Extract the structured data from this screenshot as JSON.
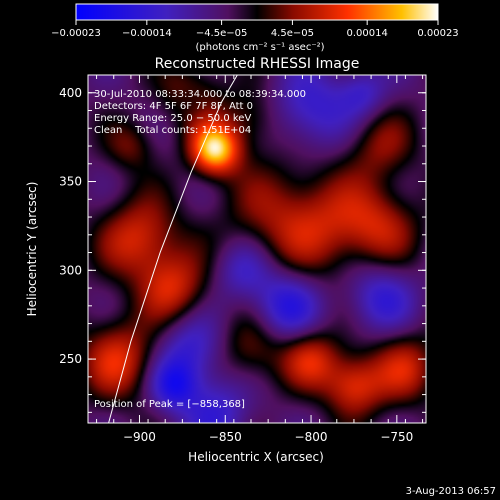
{
  "chart_data": {
    "type": "heatmap",
    "title": "Reconstructed RHESSI Image",
    "xlabel": "Heliocentric X (arcsec)",
    "ylabel": "Heliocentric Y (arcsec)",
    "xlim": [
      -930,
      -733
    ],
    "ylim": [
      214,
      410
    ],
    "xticks": [
      -900,
      -850,
      -800,
      -750
    ],
    "xtick_labels": [
      "−900",
      "−850",
      "−800",
      "−750"
    ],
    "yticks": [
      250,
      300,
      350,
      400
    ],
    "ytick_labels": [
      "250",
      "300",
      "350",
      "400"
    ],
    "colorbar": {
      "ticks": [
        -0.00023,
        -0.00014,
        -4.5e-05,
        4.5e-05,
        0.00014,
        0.00023
      ],
      "tick_labels": [
        "−0.00023",
        "−0.00014",
        "−4.5e−05",
        "4.5e−05",
        "0.00014",
        "0.00023"
      ],
      "unit_label": "(photons cm⁻² s⁻¹ asec⁻²)",
      "vmin": -0.00023,
      "vmax": 0.00023
    },
    "annotations": [
      "30-Jul-2010 08:33:34.000 to 08:39:34.000",
      "Detectors: 4F 5F 6F 7F 8F, Att 0",
      "Energy Range: 25.0 − 50.0 keV",
      "Clean    Total counts: 1.51E+04"
    ],
    "peak_label": "Position of Peak = [−858,368]",
    "peak": {
      "x": -858,
      "y": 368
    },
    "limb_curve": [
      [
        -918,
        214
      ],
      [
        -905,
        260
      ],
      [
        -888,
        310
      ],
      [
        -870,
        355
      ],
      [
        -852,
        395
      ],
      [
        -843,
        410
      ]
    ],
    "sources": [
      {
        "x": -856,
        "y": 368,
        "r": 10,
        "v": 0.00024
      },
      {
        "x": -900,
        "y": 318,
        "r": 16,
        "v": 0.00013
      },
      {
        "x": -880,
        "y": 290,
        "r": 14,
        "v": 0.00012
      },
      {
        "x": -912,
        "y": 250,
        "r": 16,
        "v": 0.00013
      },
      {
        "x": -870,
        "y": 398,
        "r": 12,
        "v": 0.00011
      },
      {
        "x": -820,
        "y": 330,
        "r": 22,
        "v": 8e-05
      },
      {
        "x": -790,
        "y": 325,
        "r": 20,
        "v": 8e-05
      },
      {
        "x": -760,
        "y": 325,
        "r": 16,
        "v": 0.0001
      },
      {
        "x": -775,
        "y": 235,
        "r": 12,
        "v": 0.00014
      },
      {
        "x": -800,
        "y": 250,
        "r": 12,
        "v": 0.00012
      },
      {
        "x": -745,
        "y": 245,
        "r": 14,
        "v": 0.00011
      },
      {
        "x": -835,
        "y": 255,
        "r": 14,
        "v": 8e-05
      },
      {
        "x": -760,
        "y": 370,
        "r": 14,
        "v": 8e-05
      },
      {
        "x": -835,
        "y": 385,
        "r": 12,
        "v": 7e-05
      },
      {
        "x": -905,
        "y": 370,
        "r": 10,
        "v": 7e-05
      },
      {
        "x": -840,
        "y": 300,
        "r": 12,
        "v": -8e-05
      },
      {
        "x": -870,
        "y": 255,
        "r": 14,
        "v": -0.0001
      },
      {
        "x": -815,
        "y": 280,
        "r": 14,
        "v": -0.00012
      },
      {
        "x": -760,
        "y": 285,
        "r": 14,
        "v": -0.0001
      },
      {
        "x": -800,
        "y": 390,
        "r": 16,
        "v": -0.0001
      },
      {
        "x": -855,
        "y": 220,
        "r": 14,
        "v": -9e-05
      },
      {
        "x": -770,
        "y": 400,
        "r": 10,
        "v": -8e-05
      },
      {
        "x": -880,
        "y": 235,
        "r": 10,
        "v": -0.00012
      },
      {
        "x": -870,
        "y": 395,
        "r": 8,
        "v": -6e-05
      }
    ]
  },
  "footer": {
    "date": "3-Aug-2013 06:57"
  }
}
